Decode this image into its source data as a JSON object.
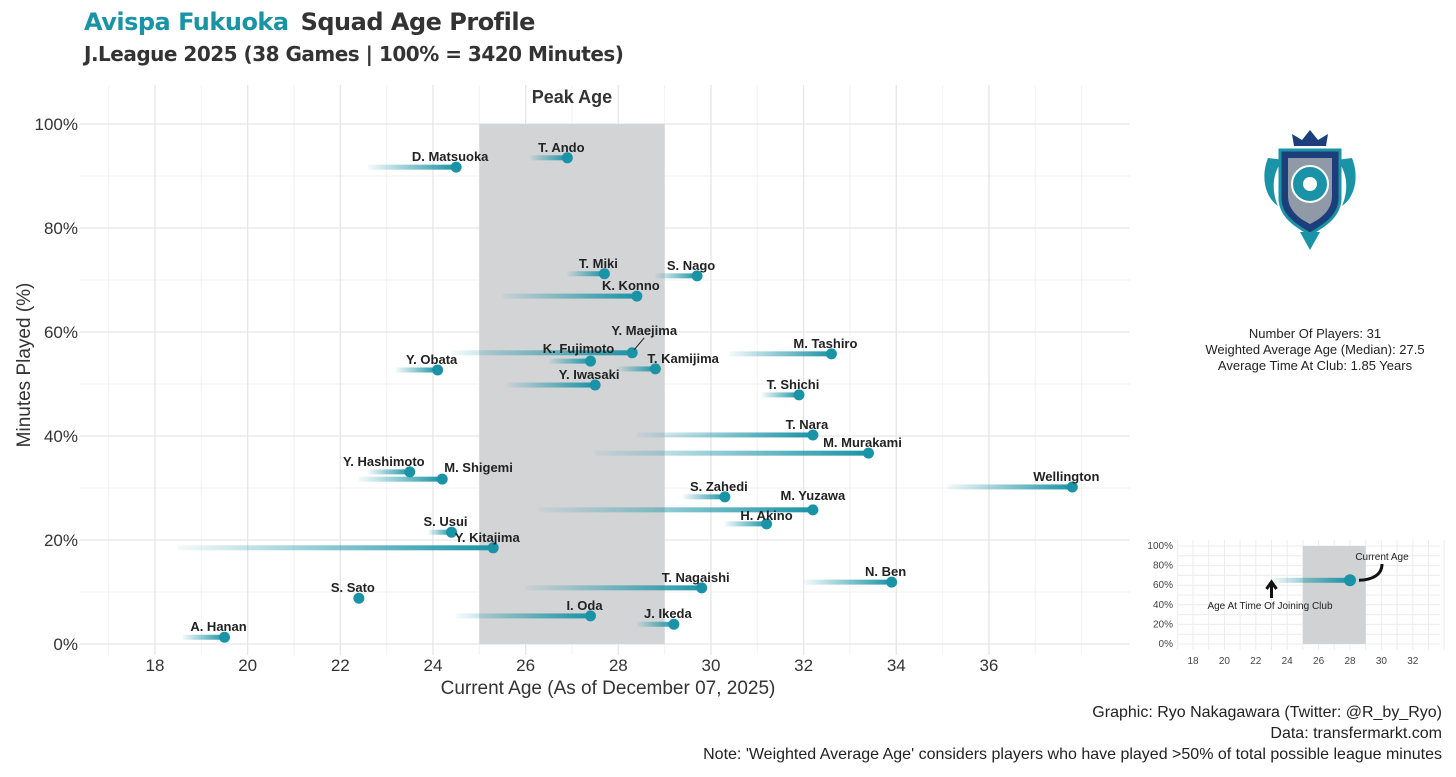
{
  "header": {
    "club": "Avispa Fukuoka",
    "title": "Squad Age Profile",
    "subtitle": "J.League 2025 (38 Games | 100% = 3420 Minutes)"
  },
  "stats": {
    "players": "Number Of Players: 31",
    "weighted": "Weighted Average Age (Median): 27.5",
    "time": "Average Time At Club: 1.85 Years"
  },
  "footer": {
    "credit": "Graphic: Ryo Nakagawara (Twitter: @R_by_Ryo)",
    "data": "Data: transfermarkt.com",
    "note": "Note: 'Weighted Average Age' considers players who have played >50% of total possible league minutes"
  },
  "legend_inset": {
    "current": "Current Age",
    "joined": "Age At Time Of Joining Club",
    "yticks": [
      "0%",
      "20%",
      "40%",
      "60%",
      "80%",
      "100%"
    ],
    "xticks": [
      "18",
      "20",
      "22",
      "24",
      "26",
      "28",
      "30",
      "32"
    ]
  },
  "colors": {
    "accent": "#1a93a6",
    "peak": "#d0d2d4"
  },
  "chart_data": {
    "type": "scatter",
    "title": "Squad Age Profile",
    "xlabel": "Current Age (As of December 07, 2025)",
    "ylabel": "Minutes Played (%)",
    "xlim": [
      16.5,
      38.5
    ],
    "ylim": [
      0,
      100
    ],
    "xticks": [
      18,
      20,
      22,
      24,
      26,
      28,
      30,
      32,
      34,
      36
    ],
    "yticks": [
      0,
      20,
      40,
      60,
      80,
      100
    ],
    "ytick_labels": [
      "0%",
      "20%",
      "40%",
      "60%",
      "80%",
      "100%"
    ],
    "peak_label": "Peak Age",
    "peak_range": [
      25,
      29
    ],
    "players": [
      {
        "name": "D. Matsuoka",
        "age": 24.5,
        "joined": 22.6,
        "minutes": 91.7
      },
      {
        "name": "T. Ando",
        "age": 26.9,
        "joined": 26.1,
        "minutes": 93.5
      },
      {
        "name": "T. Miki",
        "age": 27.7,
        "joined": 26.9,
        "minutes": 71.2
      },
      {
        "name": "S. Nago",
        "age": 29.7,
        "joined": 28.8,
        "minutes": 70.8
      },
      {
        "name": "K. Konno",
        "age": 28.4,
        "joined": 25.5,
        "minutes": 66.9
      },
      {
        "name": "Y. Maejima",
        "age": 28.3,
        "joined": 24.4,
        "minutes": 56.0
      },
      {
        "name": "K. Fujimoto",
        "age": 27.4,
        "joined": 26.5,
        "minutes": 54.4
      },
      {
        "name": "M. Tashiro",
        "age": 32.6,
        "joined": 30.4,
        "minutes": 55.8
      },
      {
        "name": "T. Kamijima",
        "age": 28.8,
        "joined": 28.0,
        "minutes": 52.9
      },
      {
        "name": "Y. Obata",
        "age": 24.1,
        "joined": 23.2,
        "minutes": 52.7
      },
      {
        "name": "Y. Iwasaki",
        "age": 27.5,
        "joined": 25.6,
        "minutes": 49.8
      },
      {
        "name": "T. Shichi",
        "age": 31.9,
        "joined": 31.1,
        "minutes": 47.9
      },
      {
        "name": "T. Nara",
        "age": 32.2,
        "joined": 28.4,
        "minutes": 40.2
      },
      {
        "name": "M. Murakami",
        "age": 33.4,
        "joined": 27.5,
        "minutes": 36.7
      },
      {
        "name": "Y. Hashimoto",
        "age": 23.5,
        "joined": 22.6,
        "minutes": 33.1
      },
      {
        "name": "M. Shigemi",
        "age": 24.2,
        "joined": 22.4,
        "minutes": 31.7
      },
      {
        "name": "Wellington",
        "age": 37.8,
        "joined": 35.1,
        "minutes": 30.2
      },
      {
        "name": "S. Zahedi",
        "age": 30.3,
        "joined": 29.4,
        "minutes": 28.3
      },
      {
        "name": "M. Yuzawa",
        "age": 32.2,
        "joined": 26.3,
        "minutes": 25.8
      },
      {
        "name": "H. Akino",
        "age": 31.2,
        "joined": 30.3,
        "minutes": 23.1
      },
      {
        "name": "S. Usui",
        "age": 24.4,
        "joined": 23.9,
        "minutes": 21.5
      },
      {
        "name": "Y. Kitajima",
        "age": 25.3,
        "joined": 18.5,
        "minutes": 18.5
      },
      {
        "name": "N. Ben",
        "age": 33.9,
        "joined": 32.0,
        "minutes": 11.9
      },
      {
        "name": "T. Nagaishi",
        "age": 29.8,
        "joined": 26.0,
        "minutes": 10.8
      },
      {
        "name": "S. Sato",
        "age": 22.4,
        "joined": 22.4,
        "minutes": 8.8
      },
      {
        "name": "I. Oda",
        "age": 27.4,
        "joined": 24.5,
        "minutes": 5.4
      },
      {
        "name": "J. Ikeda",
        "age": 29.2,
        "joined": 28.4,
        "minutes": 3.8
      },
      {
        "name": "A. Hanan",
        "age": 19.5,
        "joined": 18.6,
        "minutes": 1.3
      }
    ]
  }
}
